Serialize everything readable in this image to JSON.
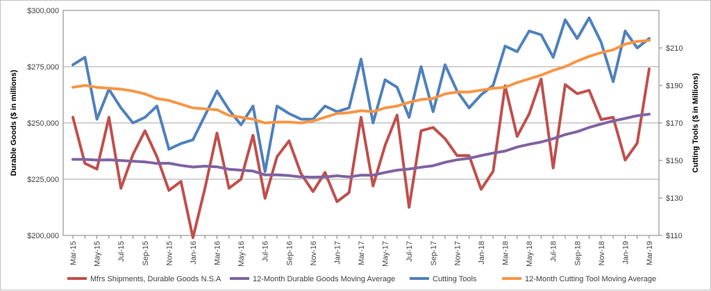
{
  "chart_data": {
    "type": "line",
    "title": "",
    "xlabel": "",
    "ylabel_left": "Durable Goods ($ in millions)",
    "ylabel_right": "Cutting Tools ($ in Millions)",
    "ylim_left": [
      200000,
      300000
    ],
    "ylim_right": [
      110,
      230
    ],
    "yticks_left": [
      "$200,000",
      "$225,000",
      "$250,000",
      "$275,000",
      "$300,000"
    ],
    "yticks_right": [
      "$110",
      "$130",
      "$150",
      "$170",
      "$190",
      "$210"
    ],
    "grid": "horizontal",
    "legend_position": "bottom",
    "categories": [
      "Mar-15",
      "Apr-15",
      "May-15",
      "Jun-15",
      "Jul-15",
      "Aug-15",
      "Sep-15",
      "Oct-15",
      "Nov-15",
      "Dec-15",
      "Jan-16",
      "Feb-16",
      "Mar-16",
      "Apr-16",
      "May-16",
      "Jun-16",
      "Jul-16",
      "Aug-16",
      "Sep-16",
      "Oct-16",
      "Nov-16",
      "Dec-16",
      "Jan-17",
      "Feb-17",
      "Mar-17",
      "Apr-17",
      "May-17",
      "Jun-17",
      "Jul-17",
      "Aug-17",
      "Sep-17",
      "Oct-17",
      "Nov-17",
      "Dec-17",
      "Jan-18",
      "Feb-18",
      "Mar-18",
      "Apr-18",
      "May-18",
      "Jun-18",
      "Jul-18",
      "Aug-18",
      "Sep-18",
      "Oct-18",
      "Nov-18",
      "Dec-18",
      "Jan-19",
      "Feb-19",
      "Mar-19"
    ],
    "tick_labels": [
      "Mar-15",
      "May-15",
      "Jul-15",
      "Sep-15",
      "Nov-15",
      "Jan-16",
      "Mar-16",
      "May-16",
      "Jul-16",
      "Sep-16",
      "Nov-16",
      "Jan-17",
      "Mar-17",
      "May-17",
      "Jul-17",
      "Sep-17",
      "Nov-17",
      "Jan-18",
      "Mar-18",
      "May-18",
      "Jul-18",
      "Sep-18",
      "Nov-18",
      "Jan-19",
      "Mar-19"
    ],
    "series": [
      {
        "name": "Mfrs Shipments, Durable Goods N.S.A",
        "axis": "left",
        "color": "#c0504d",
        "values": [
          252500,
          232000,
          229500,
          252500,
          221000,
          236000,
          246500,
          235000,
          220000,
          224000,
          199000,
          221000,
          245500,
          221000,
          225000,
          244500,
          216500,
          235000,
          242000,
          227500,
          219500,
          228000,
          215000,
          219000,
          252500,
          222000,
          240000,
          253500,
          212500,
          246500,
          248000,
          243000,
          235500,
          235500,
          220500,
          228500,
          266500,
          244000,
          254000,
          269500,
          230000,
          267000,
          263000,
          264500,
          251500,
          252500,
          233500,
          241000,
          274000
        ]
      },
      {
        "name": "12-Month Durable Goods Moving Average",
        "axis": "left",
        "color": "#8064a2",
        "values": [
          233800,
          233800,
          233500,
          233600,
          233300,
          233000,
          232700,
          232000,
          232100,
          231100,
          230400,
          230800,
          230500,
          229400,
          229000,
          228600,
          226900,
          226900,
          226600,
          226000,
          225900,
          226000,
          226500,
          226000,
          226800,
          226800,
          228000,
          229000,
          229500,
          230300,
          231000,
          232500,
          233600,
          234300,
          235500,
          236600,
          237500,
          239300,
          240500,
          241500,
          243000,
          244800,
          246100,
          248000,
          249500,
          250900,
          252000,
          253200,
          253900
        ]
      },
      {
        "name": "Cutting Tools",
        "axis": "right",
        "color": "#4f81bd",
        "values": [
          201,
          205,
          172,
          188,
          178,
          170,
          173,
          179,
          156,
          159,
          161,
          174,
          187,
          177,
          169,
          179,
          144,
          179,
          175,
          172,
          172,
          179,
          176,
          178,
          204,
          170,
          193,
          189,
          173,
          200,
          176,
          201,
          187,
          178,
          185,
          190,
          211,
          208,
          219,
          217,
          205,
          225,
          215,
          226,
          213,
          192,
          219,
          210,
          215
        ]
      },
      {
        "name": "12-Month Cutting Tool Moving Average",
        "axis": "right",
        "color": "#f79646",
        "values": [
          189,
          190,
          189,
          188.5,
          188,
          187,
          185.5,
          183,
          182,
          180,
          178,
          177.5,
          177,
          174,
          173,
          172,
          170,
          170.5,
          170.5,
          170,
          171,
          173,
          175,
          175.5,
          176.5,
          176,
          178,
          179,
          181,
          182.5,
          183,
          185.5,
          186.5,
          186.5,
          187.5,
          188.5,
          189,
          191.5,
          193.5,
          195.5,
          198,
          200,
          203,
          205.5,
          207.5,
          209,
          212,
          213.5,
          214
        ]
      }
    ]
  }
}
